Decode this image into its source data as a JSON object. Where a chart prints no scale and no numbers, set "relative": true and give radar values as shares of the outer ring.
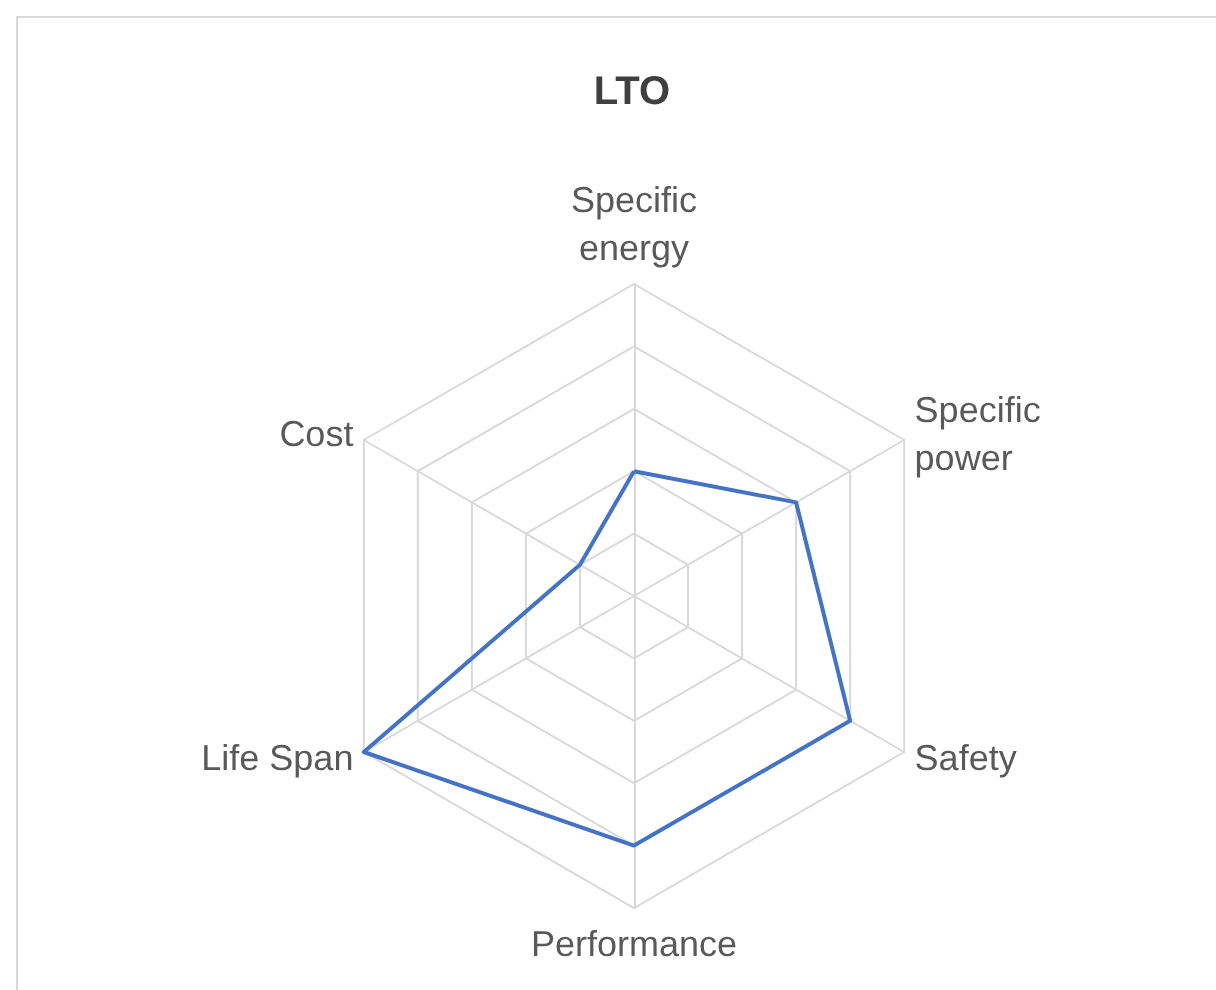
{
  "chart_data": {
    "type": "radar",
    "title": "LTO",
    "relative": true,
    "categories": [
      "Specific energy",
      "Specific power",
      "Safety",
      "Performance",
      "Life Span",
      "Cost"
    ],
    "series": [
      {
        "color": "#4472c4",
        "values": [
          0.4,
          0.6,
          0.8,
          0.8,
          1.0,
          0.2
        ]
      }
    ],
    "grid": true,
    "marker": "none"
  }
}
